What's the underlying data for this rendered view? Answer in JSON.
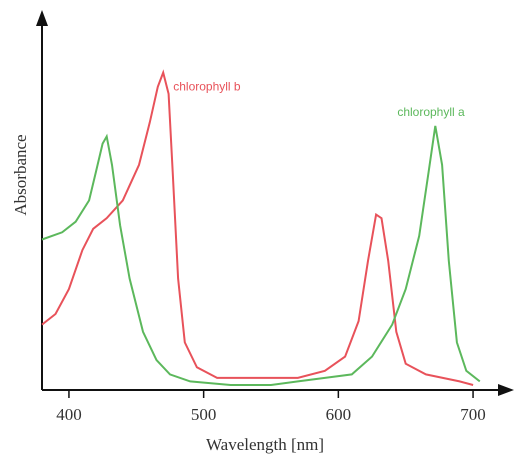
{
  "chart_data": {
    "type": "line",
    "xlabel": "Wavelength [nm]",
    "ylabel": "Absorbance",
    "xlim": [
      380,
      720
    ],
    "ylim": [
      0,
      1
    ],
    "xticks": [
      400,
      500,
      600,
      700
    ],
    "series": [
      {
        "name": "chlorophyll b",
        "color": "#e8525a",
        "x": [
          380,
          390,
          400,
          410,
          418,
          428,
          440,
          452,
          460,
          466,
          470,
          474,
          477,
          481,
          486,
          495,
          510,
          540,
          570,
          590,
          605,
          615,
          622,
          628,
          632,
          637,
          643,
          650,
          665,
          690,
          700
        ],
        "values": [
          0.17,
          0.2,
          0.27,
          0.38,
          0.44,
          0.47,
          0.52,
          0.62,
          0.74,
          0.84,
          0.88,
          0.82,
          0.6,
          0.3,
          0.12,
          0.05,
          0.02,
          0.02,
          0.02,
          0.04,
          0.08,
          0.18,
          0.35,
          0.48,
          0.47,
          0.35,
          0.15,
          0.06,
          0.03,
          0.01,
          0
        ]
      },
      {
        "name": "chlorophyll a",
        "color": "#5cb85c",
        "x": [
          380,
          395,
          405,
          415,
          420,
          425,
          428,
          432,
          438,
          445,
          455,
          465,
          475,
          490,
          520,
          550,
          570,
          590,
          610,
          625,
          640,
          650,
          660,
          667,
          672,
          677,
          682,
          688,
          695,
          705
        ],
        "values": [
          0.41,
          0.43,
          0.46,
          0.52,
          0.6,
          0.68,
          0.7,
          0.62,
          0.45,
          0.3,
          0.15,
          0.07,
          0.03,
          0.01,
          0,
          0,
          0.01,
          0.02,
          0.03,
          0.08,
          0.17,
          0.27,
          0.42,
          0.6,
          0.73,
          0.62,
          0.35,
          0.12,
          0.04,
          0.01
        ]
      }
    ]
  }
}
